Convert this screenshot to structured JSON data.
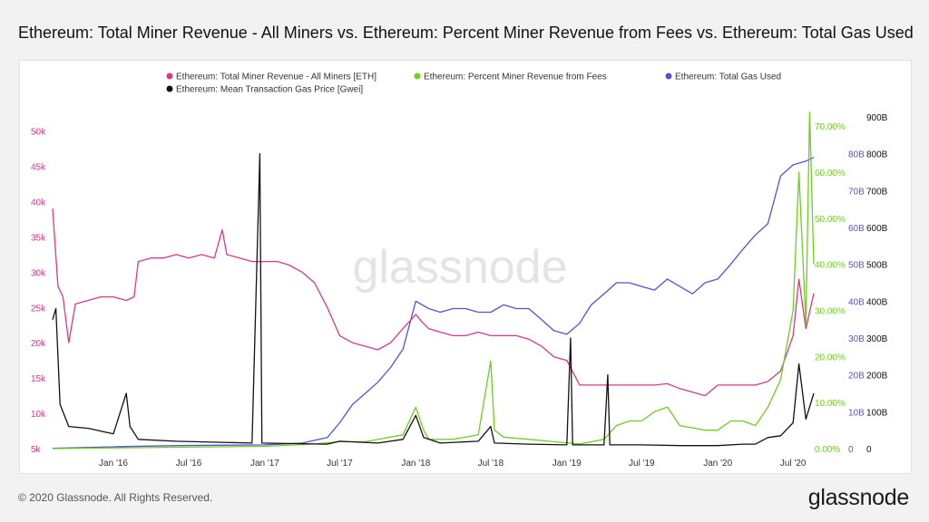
{
  "title": "Ethereum: Total Miner Revenue - All Miners vs. Ethereum: Percent Miner Revenue from Fees vs. Ethereum: Total Gas Used",
  "footer": {
    "copyright": "© 2020 Glassnode. All Rights Reserved.",
    "logo_text": "glassnode",
    "watermark": "glassnode"
  },
  "colors": {
    "revenue": "#d6398f",
    "fees": "#6fcf1f",
    "gas_used": "#5b4fd6",
    "gas_price": "#111111",
    "background": "#f2f2f2"
  },
  "chart_data": {
    "type": "line",
    "title": "Ethereum: Total Miner Revenue - All Miners vs. Ethereum: Percent Miner Revenue from Fees vs. Ethereum: Total Gas Used",
    "legend_position": "top",
    "grid": false,
    "x_ticks": [
      "Jan '16",
      "Jul '16",
      "Jan '17",
      "Jul '17",
      "Jan '18",
      "Jul '18",
      "Jan '19",
      "Jul '19",
      "Jan '20",
      "Jul '20"
    ],
    "x_tick_dates": [
      "2016-01-01",
      "2016-07-01",
      "2017-01-01",
      "2017-07-01",
      "2018-01-01",
      "2018-07-01",
      "2019-01-01",
      "2019-07-01",
      "2020-01-01",
      "2020-07-01"
    ],
    "x_range": [
      "2015-08-07",
      "2020-08-20"
    ],
    "axes": {
      "revenue": {
        "ticks": [
          "5k",
          "10k",
          "15k",
          "20k",
          "25k",
          "30k",
          "35k",
          "40k",
          "45k",
          "50k"
        ],
        "range": [
          5000,
          52000
        ]
      },
      "fees": {
        "ticks": [
          "0.00%",
          "10.00%",
          "20.00%",
          "30.00%",
          "40.00%",
          "50.00%",
          "60.00%",
          "70.00%"
        ],
        "range": [
          0,
          72
        ]
      },
      "gas_used": {
        "ticks": [
          "0",
          "10B",
          "20B",
          "30B",
          "40B",
          "50B",
          "60B",
          "70B",
          "80B"
        ],
        "range": [
          0,
          90
        ]
      },
      "gas_price": {
        "ticks": [
          "0",
          "100B",
          "200B",
          "300B",
          "400B",
          "500B",
          "600B",
          "700B",
          "800B",
          "900B"
        ],
        "range": [
          0,
          900
        ]
      }
    },
    "series": [
      {
        "name": "Ethereum: Total Miner Revenue - All Miners [ETH]",
        "axis": "revenue",
        "points": [
          [
            "2015-08-07",
            39000
          ],
          [
            "2015-08-20",
            28000
          ],
          [
            "2015-09-01",
            26500
          ],
          [
            "2015-09-15",
            20000
          ],
          [
            "2015-10-01",
            25500
          ],
          [
            "2015-11-01",
            26000
          ],
          [
            "2015-12-01",
            26500
          ],
          [
            "2016-01-01",
            26500
          ],
          [
            "2016-02-01",
            26000
          ],
          [
            "2016-02-20",
            26500
          ],
          [
            "2016-03-01",
            31500
          ],
          [
            "2016-04-01",
            32000
          ],
          [
            "2016-05-01",
            32000
          ],
          [
            "2016-06-01",
            32500
          ],
          [
            "2016-07-01",
            32000
          ],
          [
            "2016-08-01",
            32500
          ],
          [
            "2016-09-01",
            32000
          ],
          [
            "2016-09-20",
            36000
          ],
          [
            "2016-10-01",
            32500
          ],
          [
            "2016-11-01",
            32000
          ],
          [
            "2016-12-01",
            31500
          ],
          [
            "2017-01-01",
            31500
          ],
          [
            "2017-02-01",
            31500
          ],
          [
            "2017-03-01",
            31000
          ],
          [
            "2017-04-01",
            30000
          ],
          [
            "2017-05-01",
            28500
          ],
          [
            "2017-06-01",
            25000
          ],
          [
            "2017-07-01",
            21000
          ],
          [
            "2017-08-01",
            20000
          ],
          [
            "2017-09-01",
            19500
          ],
          [
            "2017-10-01",
            19000
          ],
          [
            "2017-11-01",
            20000
          ],
          [
            "2017-12-01",
            22000
          ],
          [
            "2018-01-01",
            24000
          ],
          [
            "2018-01-15",
            23000
          ],
          [
            "2018-02-01",
            22000
          ],
          [
            "2018-03-01",
            21500
          ],
          [
            "2018-04-01",
            21000
          ],
          [
            "2018-05-01",
            21000
          ],
          [
            "2018-06-01",
            21500
          ],
          [
            "2018-07-01",
            21000
          ],
          [
            "2018-08-01",
            21000
          ],
          [
            "2018-09-01",
            21000
          ],
          [
            "2018-10-01",
            20500
          ],
          [
            "2018-11-01",
            19500
          ],
          [
            "2018-12-01",
            18000
          ],
          [
            "2019-01-01",
            17500
          ],
          [
            "2019-02-01",
            14000
          ],
          [
            "2019-03-01",
            14000
          ],
          [
            "2019-04-01",
            14000
          ],
          [
            "2019-05-01",
            14000
          ],
          [
            "2019-06-01",
            14000
          ],
          [
            "2019-07-01",
            14000
          ],
          [
            "2019-08-01",
            14000
          ],
          [
            "2019-09-01",
            14200
          ],
          [
            "2019-10-01",
            13500
          ],
          [
            "2019-11-01",
            13000
          ],
          [
            "2019-12-01",
            12500
          ],
          [
            "2020-01-01",
            14000
          ],
          [
            "2020-02-01",
            14000
          ],
          [
            "2020-03-01",
            14000
          ],
          [
            "2020-04-01",
            14000
          ],
          [
            "2020-05-01",
            14500
          ],
          [
            "2020-06-01",
            16000
          ],
          [
            "2020-07-01",
            21000
          ],
          [
            "2020-07-15",
            29000
          ],
          [
            "2020-08-01",
            22000
          ],
          [
            "2020-08-20",
            27000
          ]
        ]
      },
      {
        "name": "Ethereum: Percent Miner Revenue from Fees",
        "axis": "fees",
        "points": [
          [
            "2015-08-07",
            0
          ],
          [
            "2016-06-01",
            0.3
          ],
          [
            "2017-01-01",
            0.5
          ],
          [
            "2017-05-01",
            1.0
          ],
          [
            "2017-07-01",
            1.5
          ],
          [
            "2017-09-01",
            1.5
          ],
          [
            "2017-12-01",
            3
          ],
          [
            "2018-01-01",
            9
          ],
          [
            "2018-01-20",
            4
          ],
          [
            "2018-02-01",
            2
          ],
          [
            "2018-04-01",
            2
          ],
          [
            "2018-06-01",
            3
          ],
          [
            "2018-07-01",
            19
          ],
          [
            "2018-07-10",
            4
          ],
          [
            "2018-08-01",
            2.5
          ],
          [
            "2018-10-01",
            2
          ],
          [
            "2018-12-01",
            1.5
          ],
          [
            "2019-02-01",
            1
          ],
          [
            "2019-04-01",
            2
          ],
          [
            "2019-05-01",
            5
          ],
          [
            "2019-06-01",
            6
          ],
          [
            "2019-07-01",
            6
          ],
          [
            "2019-08-01",
            8
          ],
          [
            "2019-09-01",
            9
          ],
          [
            "2019-10-01",
            5
          ],
          [
            "2019-11-01",
            4.5
          ],
          [
            "2019-12-01",
            4
          ],
          [
            "2020-01-01",
            4
          ],
          [
            "2020-02-01",
            6
          ],
          [
            "2020-03-01",
            6
          ],
          [
            "2020-04-01",
            5
          ],
          [
            "2020-05-01",
            9
          ],
          [
            "2020-06-01",
            15
          ],
          [
            "2020-07-01",
            30
          ],
          [
            "2020-07-15",
            60
          ],
          [
            "2020-08-01",
            27
          ],
          [
            "2020-08-10",
            73
          ],
          [
            "2020-08-20",
            40
          ]
        ]
      },
      {
        "name": "Ethereum: Total Gas Used",
        "axis": "gas_used",
        "points": [
          [
            "2015-08-07",
            0.1
          ],
          [
            "2016-01-01",
            0.5
          ],
          [
            "2016-06-01",
            0.8
          ],
          [
            "2017-01-01",
            1
          ],
          [
            "2017-04-01",
            1.5
          ],
          [
            "2017-06-01",
            3
          ],
          [
            "2017-07-01",
            7
          ],
          [
            "2017-08-01",
            12
          ],
          [
            "2017-09-01",
            15
          ],
          [
            "2017-10-01",
            18
          ],
          [
            "2017-11-01",
            22
          ],
          [
            "2017-12-01",
            27
          ],
          [
            "2018-01-01",
            40
          ],
          [
            "2018-02-01",
            38
          ],
          [
            "2018-03-01",
            37
          ],
          [
            "2018-04-01",
            38
          ],
          [
            "2018-05-01",
            38
          ],
          [
            "2018-06-01",
            37
          ],
          [
            "2018-07-01",
            37
          ],
          [
            "2018-08-01",
            39
          ],
          [
            "2018-09-01",
            38
          ],
          [
            "2018-10-01",
            38
          ],
          [
            "2018-11-01",
            35
          ],
          [
            "2018-12-01",
            32
          ],
          [
            "2019-01-01",
            31
          ],
          [
            "2019-02-01",
            34
          ],
          [
            "2019-03-01",
            39
          ],
          [
            "2019-04-01",
            42
          ],
          [
            "2019-05-01",
            45
          ],
          [
            "2019-06-01",
            45
          ],
          [
            "2019-07-01",
            44
          ],
          [
            "2019-08-01",
            43
          ],
          [
            "2019-09-01",
            46
          ],
          [
            "2019-10-01",
            44
          ],
          [
            "2019-11-01",
            42
          ],
          [
            "2019-12-01",
            45
          ],
          [
            "2020-01-01",
            46
          ],
          [
            "2020-02-01",
            50
          ],
          [
            "2020-03-01",
            54
          ],
          [
            "2020-04-01",
            58
          ],
          [
            "2020-05-01",
            61
          ],
          [
            "2020-06-01",
            74
          ],
          [
            "2020-07-01",
            77
          ],
          [
            "2020-08-01",
            78
          ],
          [
            "2020-08-20",
            79
          ]
        ]
      },
      {
        "name": "Ethereum: Mean Transaction Gas Price [Gwei]",
        "axis": "gas_price",
        "points": [
          [
            "2015-08-07",
            350
          ],
          [
            "2015-08-15",
            380
          ],
          [
            "2015-08-25",
            120
          ],
          [
            "2015-09-15",
            60
          ],
          [
            "2015-11-01",
            55
          ],
          [
            "2016-01-01",
            40
          ],
          [
            "2016-02-01",
            150
          ],
          [
            "2016-02-10",
            60
          ],
          [
            "2016-03-01",
            25
          ],
          [
            "2016-06-01",
            20
          ],
          [
            "2016-12-01",
            15
          ],
          [
            "2016-12-20",
            800
          ],
          [
            "2016-12-25",
            15
          ],
          [
            "2017-06-01",
            12
          ],
          [
            "2017-07-01",
            20
          ],
          [
            "2017-10-01",
            15
          ],
          [
            "2017-12-01",
            25
          ],
          [
            "2018-01-01",
            90
          ],
          [
            "2018-01-20",
            30
          ],
          [
            "2018-03-01",
            15
          ],
          [
            "2018-06-01",
            20
          ],
          [
            "2018-07-01",
            60
          ],
          [
            "2018-07-10",
            15
          ],
          [
            "2018-10-01",
            12
          ],
          [
            "2019-01-01",
            10
          ],
          [
            "2019-01-10",
            300
          ],
          [
            "2019-01-15",
            10
          ],
          [
            "2019-04-01",
            10
          ],
          [
            "2019-04-10",
            200
          ],
          [
            "2019-04-15",
            10
          ],
          [
            "2019-07-01",
            10
          ],
          [
            "2019-10-01",
            8
          ],
          [
            "2020-01-01",
            8
          ],
          [
            "2020-03-01",
            12
          ],
          [
            "2020-04-01",
            12
          ],
          [
            "2020-05-01",
            30
          ],
          [
            "2020-06-01",
            35
          ],
          [
            "2020-07-01",
            70
          ],
          [
            "2020-07-15",
            230
          ],
          [
            "2020-08-01",
            80
          ],
          [
            "2020-08-20",
            150
          ]
        ]
      }
    ]
  }
}
